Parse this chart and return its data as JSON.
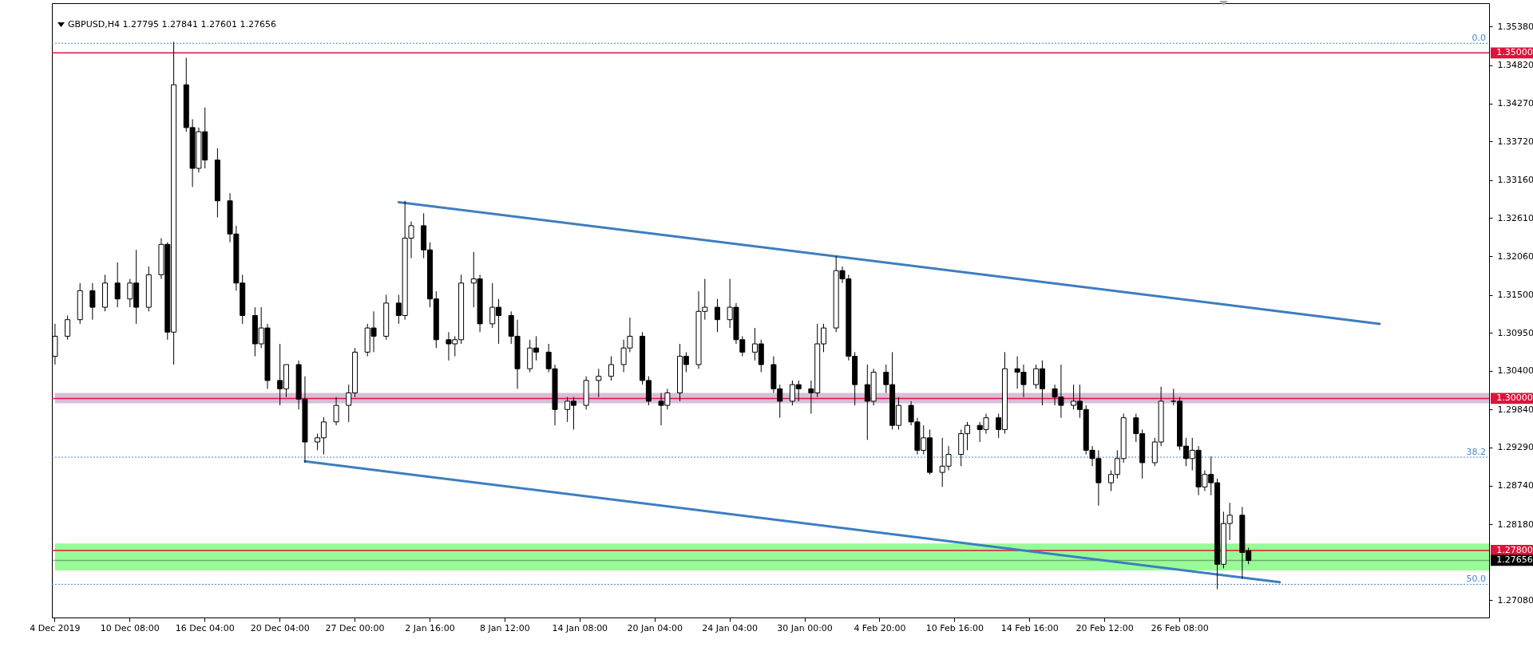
{
  "chart_data": {
    "type": "candlestick",
    "title": "GBPUSD,H4  1.27795 1.27841 1.27601 1.27656",
    "color": "#000000",
    "categories": [
      "4 Dec 2019",
      null,
      null,
      null,
      null,
      null,
      null,
      null,
      null,
      null,
      null,
      null,
      "10 Dec 08:00",
      null,
      null,
      null,
      null,
      null,
      null,
      null,
      null,
      null,
      null,
      null,
      "16 Dec 04:00",
      null,
      null,
      null,
      null,
      null,
      null,
      null,
      null,
      null,
      null,
      null,
      "20 Dec 04:00",
      null,
      null,
      null,
      null,
      null,
      null,
      null,
      null,
      null,
      null,
      null,
      "27 Dec 00:00",
      null,
      null,
      null,
      null,
      null,
      null,
      null,
      null,
      null,
      null,
      null,
      "2 Jan 16:00",
      null,
      null,
      null,
      null,
      null,
      null,
      null,
      null,
      null,
      null,
      null,
      "8 Jan 12:00",
      null,
      null,
      null,
      null,
      null,
      null,
      null,
      null,
      null,
      null,
      null,
      "14 Jan 08:00",
      null,
      null,
      null,
      null,
      null,
      null,
      null,
      null,
      null,
      null,
      null,
      "20 Jan 04:00",
      null,
      null,
      null,
      null,
      null,
      null,
      null,
      null,
      null,
      null,
      null,
      "24 Jan 04:00",
      null,
      null,
      null,
      null,
      null,
      null,
      null,
      null,
      null,
      null,
      null,
      "30 Jan 00:00",
      null,
      null,
      null,
      null,
      null,
      null,
      null,
      null,
      null,
      null,
      null,
      "4 Feb 20:00",
      null,
      null,
      null,
      null,
      null,
      null,
      null,
      null,
      null,
      null,
      null,
      "10 Feb 16:00",
      null,
      null,
      null,
      null,
      null,
      null,
      null,
      null,
      null,
      null,
      null,
      "14 Feb 16:00",
      null,
      null,
      null,
      null,
      null,
      null,
      null,
      null,
      null,
      null,
      null,
      "20 Feb 12:00",
      null,
      null,
      null,
      null,
      null,
      null,
      null,
      null,
      null,
      null,
      null,
      "26 Feb 08:00",
      null,
      null,
      null,
      null,
      null,
      null,
      null,
      null,
      null,
      null,
      null,
      null,
      null,
      null,
      null,
      null,
      null,
      null,
      null,
      null,
      null,
      null,
      null,
      null,
      null,
      null,
      null,
      null,
      null,
      null,
      null,
      null,
      null,
      null,
      null,
      null,
      null,
      null,
      null,
      null,
      null,
      null,
      null,
      null,
      null,
      null,
      null,
      null,
      null
    ],
    "ohlc": [
      [
        1.3061,
        1.3108,
        1.3049,
        1.309
      ],
      null,
      [
        1.309,
        1.312,
        1.3085,
        1.3114
      ],
      null,
      [
        1.3114,
        1.3167,
        1.3108,
        1.3156
      ],
      null,
      [
        1.3156,
        1.3167,
        1.3114,
        1.3132
      ],
      null,
      [
        1.3132,
        1.3179,
        1.3126,
        1.3167
      ],
      null,
      [
        1.3167,
        1.3197,
        1.3132,
        1.3144
      ],
      null,
      [
        1.3144,
        1.3173,
        1.3132,
        1.3167
      ],
      [
        1.3167,
        1.3215,
        1.3108,
        1.3132
      ],
      null,
      [
        1.3132,
        1.3191,
        1.3126,
        1.3179
      ],
      null,
      [
        1.3179,
        1.3232,
        1.3173,
        1.3223
      ],
      [
        1.3223,
        1.3226,
        1.3085,
        1.3096
      ],
      [
        1.3096,
        1.3516,
        1.3049,
        1.3454
      ],
      null,
      [
        1.3454,
        1.3493,
        1.3386,
        1.3392
      ],
      [
        1.3392,
        1.3404,
        1.3306,
        1.3333
      ],
      [
        1.3333,
        1.3392,
        1.3327,
        1.3386
      ],
      [
        1.3386,
        1.3421,
        1.3333,
        1.3345
      ],
      null,
      [
        1.3345,
        1.3362,
        1.3262,
        1.3286
      ],
      null,
      [
        1.3286,
        1.3297,
        1.3226,
        1.3238
      ],
      [
        1.3238,
        1.325,
        1.3156,
        1.3167
      ],
      [
        1.3167,
        1.3179,
        1.3108,
        1.312
      ],
      null,
      [
        1.312,
        1.3132,
        1.3061,
        1.3079
      ],
      [
        1.3079,
        1.3132,
        1.3073,
        1.3102
      ],
      [
        1.3102,
        1.3108,
        1.3014,
        1.3026
      ],
      null,
      [
        1.3026,
        1.3079,
        1.299,
        1.3014
      ],
      [
        1.3014,
        1.3049,
        1.3002,
        1.3049
      ],
      null,
      [
        1.3049,
        1.3055,
        1.2984,
        1.2999
      ],
      [
        1.2999,
        1.3032,
        1.2907,
        1.2937
      ],
      null,
      [
        1.2937,
        1.2949,
        1.2925,
        1.2943
      ],
      [
        1.2943,
        1.2973,
        1.2919,
        1.2966
      ],
      null,
      [
        1.2966,
        1.3002,
        1.2961,
        1.299
      ],
      null,
      [
        1.299,
        1.302,
        1.2966,
        1.3008
      ],
      [
        1.3008,
        1.3073,
        1.3002,
        1.3067
      ],
      null,
      [
        1.3067,
        1.3108,
        1.3061,
        1.3102
      ],
      [
        1.3102,
        1.3126,
        1.3067,
        1.309
      ],
      null,
      [
        1.309,
        1.315,
        1.3085,
        1.3138
      ],
      null,
      [
        1.3138,
        1.315,
        1.3108,
        1.312
      ],
      [
        1.312,
        1.3286,
        1.3114,
        1.3232
      ],
      [
        1.3232,
        1.3256,
        1.3203,
        1.325
      ],
      null,
      [
        1.325,
        1.3268,
        1.3203,
        1.3215
      ],
      [
        1.3215,
        1.3226,
        1.3132,
        1.3144
      ],
      [
        1.3144,
        1.3155,
        1.3073,
        1.3085
      ],
      null,
      [
        1.3085,
        1.3096,
        1.3055,
        1.3079
      ],
      [
        1.3079,
        1.309,
        1.3061,
        1.3085
      ],
      [
        1.3085,
        1.3179,
        1.3079,
        1.3167
      ],
      null,
      [
        1.3167,
        1.3212,
        1.3132,
        1.3173
      ],
      [
        1.3173,
        1.3179,
        1.3096,
        1.3108
      ],
      null,
      [
        1.3108,
        1.3167,
        1.3102,
        1.3132
      ],
      [
        1.3132,
        1.3144,
        1.3079,
        1.312
      ],
      null,
      [
        1.312,
        1.3126,
        1.3079,
        1.309
      ],
      [
        1.309,
        1.3114,
        1.3014,
        1.3043
      ],
      null,
      [
        1.3043,
        1.3085,
        1.3038,
        1.3073
      ],
      [
        1.3073,
        1.309,
        1.3055,
        1.3067
      ],
      null,
      [
        1.3067,
        1.3079,
        1.3038,
        1.3043
      ],
      [
        1.3043,
        1.3049,
        1.2961,
        1.2984
      ],
      null,
      [
        1.2984,
        1.3002,
        1.2966,
        1.2996
      ],
      [
        1.2996,
        1.3002,
        1.2955,
        1.299
      ],
      null,
      [
        1.299,
        1.3032,
        1.2984,
        1.3026
      ],
      null,
      [
        1.3026,
        1.3043,
        1.3002,
        1.3032
      ],
      null,
      [
        1.3032,
        1.3061,
        1.3026,
        1.3049
      ],
      null,
      [
        1.3049,
        1.3085,
        1.3038,
        1.3073
      ],
      [
        1.3073,
        1.3117,
        1.3067,
        1.309
      ],
      null,
      [
        1.309,
        1.3096,
        1.302,
        1.3026
      ],
      [
        1.3026,
        1.3032,
        1.299,
        1.2996
      ],
      null,
      [
        1.2996,
        1.3008,
        1.2961,
        1.299
      ],
      [
        1.299,
        1.3014,
        1.2984,
        1.3008
      ],
      null,
      [
        1.3008,
        1.3079,
        1.2996,
        1.3061
      ],
      [
        1.3061,
        1.3067,
        1.3038,
        1.3049
      ],
      null,
      [
        1.3049,
        1.3155,
        1.3043,
        1.3126
      ],
      [
        1.3126,
        1.3173,
        1.3114,
        1.3132
      ],
      null,
      [
        1.3132,
        1.3144,
        1.3096,
        1.3114
      ],
      null,
      [
        1.3114,
        1.3173,
        1.3102,
        1.3132
      ],
      [
        1.3132,
        1.3138,
        1.3079,
        1.3085
      ],
      [
        1.3085,
        1.309,
        1.3061,
        1.3067
      ],
      null,
      [
        1.3067,
        1.3102,
        1.3055,
        1.3079
      ],
      [
        1.3079,
        1.3085,
        1.3038,
        1.3049
      ],
      null,
      [
        1.3049,
        1.3061,
        1.3008,
        1.3014
      ],
      [
        1.3014,
        1.302,
        1.2972,
        1.2996
      ],
      null,
      [
        1.2996,
        1.3026,
        1.299,
        1.302
      ],
      [
        1.302,
        1.3026,
        1.2996,
        1.3014
      ],
      null,
      [
        1.3014,
        1.3026,
        1.2978,
        1.3008
      ],
      [
        1.3008,
        1.3108,
        1.3002,
        1.3079
      ],
      [
        1.3079,
        1.3108,
        1.3067,
        1.3102
      ],
      null,
      [
        1.3102,
        1.3206,
        1.3096,
        1.3185
      ],
      [
        1.3185,
        1.3191,
        1.3167,
        1.3173
      ],
      [
        1.3173,
        1.3179,
        1.3055,
        1.3061
      ],
      [
        1.3061,
        1.3067,
        1.299,
        1.302
      ],
      null,
      [
        1.302,
        1.3049,
        1.294,
        1.2996
      ],
      [
        1.2996,
        1.3043,
        1.299,
        1.3038
      ],
      null,
      [
        1.3038,
        1.3049,
        1.3008,
        1.302
      ],
      [
        1.302,
        1.3067,
        1.2955,
        1.2961
      ],
      [
        1.2961,
        1.3002,
        1.2955,
        1.299
      ],
      null,
      [
        1.299,
        1.2996,
        1.2961,
        1.2966
      ],
      [
        1.2966,
        1.2972,
        1.2919,
        1.2925
      ],
      [
        1.2925,
        1.2961,
        1.2919,
        1.2943
      ],
      [
        1.2943,
        1.2955,
        1.289,
        1.2893
      ],
      null,
      [
        1.2893,
        1.2943,
        1.2872,
        1.2902
      ],
      [
        1.2902,
        1.2931,
        1.2896,
        1.2919
      ],
      null,
      [
        1.2919,
        1.2955,
        1.2902,
        1.2949
      ],
      [
        1.2949,
        1.2966,
        1.2925,
        1.2961
      ],
      null,
      [
        1.2961,
        1.2966,
        1.2937,
        1.2955
      ],
      [
        1.2955,
        1.2978,
        1.2949,
        1.2972
      ],
      null,
      [
        1.2972,
        1.2978,
        1.2943,
        1.2955
      ],
      [
        1.2955,
        1.3067,
        1.2949,
        1.3043
      ],
      null,
      [
        1.3043,
        1.3061,
        1.3014,
        1.3038
      ],
      [
        1.3038,
        1.3049,
        1.3002,
        1.302
      ],
      null,
      [
        1.302,
        1.3049,
        1.3014,
        1.3043
      ],
      [
        1.3043,
        1.3055,
        1.299,
        1.3014
      ],
      null,
      [
        1.3014,
        1.302,
        1.299,
        1.3002
      ],
      [
        1.3002,
        1.3049,
        1.2972,
        1.299
      ],
      null,
      [
        1.299,
        1.302,
        1.2984,
        1.2996
      ],
      [
        1.2996,
        1.302,
        1.2972,
        1.2984
      ],
      [
        1.2984,
        1.299,
        1.2919,
        1.2925
      ],
      [
        1.2925,
        1.2931,
        1.2902,
        1.2913
      ],
      [
        1.2913,
        1.2925,
        1.2845,
        1.2878
      ],
      null,
      [
        1.2878,
        1.2896,
        1.2866,
        1.289
      ],
      [
        1.289,
        1.2925,
        1.2884,
        1.2913
      ],
      [
        1.2913,
        1.2978,
        1.2907,
        1.2972
      ],
      null,
      [
        1.2972,
        1.2978,
        1.2937,
        1.2949
      ],
      [
        1.2949,
        1.2955,
        1.2884,
        1.2907
      ],
      null,
      [
        1.2907,
        1.2943,
        1.2902,
        1.2937
      ],
      [
        1.2937,
        1.3017,
        1.2931,
        1.2996
      ],
      null,
      [
        1.2996,
        1.3014,
        1.299,
        1.2996
      ],
      [
        1.2996,
        1.3002,
        1.2925,
        1.2931
      ],
      [
        1.2931,
        1.2943,
        1.2902,
        1.2913
      ],
      [
        1.2913,
        1.2943,
        1.2896,
        1.2925
      ],
      [
        1.2925,
        1.2931,
        1.286,
        1.2872
      ],
      [
        1.2872,
        1.2896,
        1.2866,
        1.289
      ],
      [
        1.289,
        1.2916,
        1.286,
        1.2878
      ],
      [
        1.2878,
        1.2884,
        1.2724,
        1.276
      ],
      [
        1.276,
        1.2836,
        1.2754,
        1.2819
      ],
      [
        1.2819,
        1.2849,
        1.2795,
        1.2831
      ],
      null,
      [
        1.2831,
        1.2843,
        1.2739,
        1.2777
      ],
      [
        1.27795,
        1.27841,
        1.27601,
        1.27656
      ],
      null,
      null,
      null,
      null,
      null,
      null,
      null,
      null,
      null,
      null,
      null,
      null,
      null,
      null,
      null,
      null,
      null,
      null,
      null,
      null,
      null,
      null,
      null,
      null,
      null,
      null,
      null,
      null,
      null,
      null,
      null,
      null,
      null,
      null,
      null,
      null,
      null,
      null
    ],
    "series": [
      {
        "type": "line",
        "color": "#3d7ebf",
        "values": [
          null,
          null,
          null,
          null,
          null,
          null,
          null,
          null,
          null,
          null,
          null,
          null,
          null,
          null,
          null,
          null,
          null,
          null,
          null,
          null,
          null,
          null,
          null,
          null,
          null,
          null,
          null,
          null,
          null,
          null,
          null,
          null,
          null,
          null,
          null,
          null,
          null,
          null,
          null,
          null,
          null,
          null,
          null,
          null,
          null,
          null,
          null,
          null,
          null,
          null,
          null,
          null,
          null,
          null,
          null,
          1.3284,
          null,
          null,
          null,
          null,
          null,
          null,
          null,
          null,
          null,
          null,
          null,
          null,
          null,
          null,
          null,
          null,
          null,
          null,
          null,
          null,
          null,
          null,
          null,
          null,
          null,
          null,
          null,
          null,
          null,
          null,
          null,
          null,
          null,
          null,
          null,
          null,
          null,
          null,
          null,
          null,
          null,
          null,
          null,
          null,
          null,
          null,
          null,
          null,
          null,
          null,
          null,
          null,
          null,
          null,
          null,
          null,
          null,
          null,
          null,
          null,
          null,
          null,
          null,
          null,
          null,
          null,
          null,
          null,
          null,
          null,
          null,
          null,
          null,
          null,
          null,
          null,
          null,
          null,
          null,
          null,
          null,
          null,
          null,
          null,
          null,
          null,
          null,
          null,
          null,
          null,
          null,
          null,
          null,
          null,
          null,
          null,
          null,
          null,
          null,
          null,
          null,
          null,
          null,
          null,
          null,
          null,
          null,
          null,
          null,
          null,
          null,
          null,
          null,
          null,
          null,
          null,
          null,
          null,
          null,
          null,
          null,
          null,
          null,
          null,
          null,
          null,
          null,
          null,
          null,
          null,
          null,
          null,
          null,
          null,
          null,
          null,
          null,
          null,
          null,
          null,
          null,
          null,
          null,
          null,
          null,
          null,
          null,
          null,
          null,
          null,
          null,
          null,
          null,
          null,
          null,
          null,
          1.3108,
          null,
          null,
          null,
          null,
          null,
          null,
          null,
          null,
          null,
          null,
          null,
          null,
          null,
          null,
          null,
          null,
          null
        ]
      },
      {
        "type": "line",
        "color": "#3d7ebf",
        "values": [
          null,
          null,
          null,
          null,
          null,
          null,
          null,
          null,
          null,
          null,
          null,
          null,
          null,
          null,
          null,
          null,
          null,
          null,
          null,
          null,
          null,
          null,
          null,
          null,
          null,
          null,
          null,
          null,
          null,
          null,
          null,
          null,
          null,
          null,
          null,
          null,
          null,
          null,
          null,
          null,
          1.2909,
          null,
          null,
          null,
          null,
          null,
          null,
          null,
          null,
          null,
          null,
          null,
          null,
          null,
          null,
          null,
          null,
          null,
          null,
          null,
          null,
          null,
          null,
          null,
          null,
          null,
          null,
          null,
          null,
          null,
          null,
          null,
          null,
          null,
          null,
          null,
          null,
          null,
          null,
          null,
          null,
          null,
          null,
          null,
          null,
          null,
          null,
          null,
          null,
          null,
          null,
          null,
          null,
          null,
          null,
          null,
          null,
          null,
          null,
          null,
          null,
          null,
          null,
          null,
          null,
          null,
          null,
          null,
          null,
          null,
          null,
          null,
          null,
          null,
          null,
          null,
          null,
          null,
          null,
          null,
          null,
          null,
          null,
          null,
          null,
          null,
          null,
          null,
          null,
          null,
          null,
          null,
          null,
          null,
          null,
          null,
          null,
          null,
          null,
          null,
          null,
          null,
          null,
          null,
          null,
          null,
          null,
          null,
          null,
          null,
          null,
          null,
          null,
          null,
          null,
          null,
          null,
          null,
          null,
          null,
          null,
          null,
          null,
          null,
          null,
          null,
          null,
          null,
          null,
          null,
          null,
          null,
          null,
          null,
          null,
          null,
          null,
          null,
          null,
          null,
          null,
          null,
          null,
          null,
          null,
          null,
          null,
          null,
          null,
          null,
          null,
          null,
          null,
          null,
          null,
          null,
          1.2734,
          null,
          null,
          null,
          null,
          null,
          null,
          null,
          null,
          null,
          null,
          null,
          null,
          null,
          null,
          null,
          null,
          null,
          null,
          null,
          null,
          null,
          null,
          null,
          null,
          null,
          null,
          null,
          null,
          null,
          null,
          null,
          null,
          null
        ]
      }
    ],
    "ylim": [
      1.2683,
      1.3572
    ],
    "yticks": [
      {
        "value": 1.3538,
        "label": "1.35380"
      },
      {
        "value": 1.3482,
        "label": "1.34820"
      },
      {
        "value": 1.3427,
        "label": "1.34270"
      },
      {
        "value": 1.3372,
        "label": "1.33720"
      },
      {
        "value": 1.3316,
        "label": "1.33160"
      },
      {
        "value": 1.3261,
        "label": "1.32610"
      },
      {
        "value": 1.3206,
        "label": "1.32060"
      },
      {
        "value": 1.315,
        "label": "1.31500"
      },
      {
        "value": 1.3095,
        "label": "1.30950"
      },
      {
        "value": 1.304,
        "label": "1.30400"
      },
      {
        "value": 1.2984,
        "label": "1.29840"
      },
      {
        "value": 1.2929,
        "label": "1.29290"
      },
      {
        "value": 1.2874,
        "label": "1.28740"
      },
      {
        "value": 1.2818,
        "label": "1.28180"
      },
      {
        "value": 1.2708,
        "label": "1.27080"
      }
    ],
    "bands": [
      {
        "axis": "y",
        "from": 1.2993,
        "to": 1.3008,
        "color": "#d8bfd8"
      },
      {
        "axis": "y",
        "from": 1.2751,
        "to": 1.279,
        "color": "#98fb98"
      }
    ],
    "ref_lines": [
      {
        "axis": "y",
        "value": 1.3514,
        "color": "#4a86c8",
        "line_style": "dotted"
      },
      {
        "axis": "y",
        "value": 1.2915,
        "color": "#4a86c8",
        "line_style": "dotted"
      },
      {
        "axis": "y",
        "value": 1.2731,
        "color": "#4a86c8",
        "line_style": "dotted"
      },
      {
        "axis": "y",
        "value": 1.35,
        "label": "1.35000",
        "color": "#dc143c",
        "line_style": "solid"
      },
      {
        "axis": "y",
        "value": 1.3,
        "label": "1.30000",
        "color": "#dc143c",
        "line_style": "solid"
      },
      {
        "axis": "y",
        "value": 1.278,
        "label": "1.27800",
        "color": "#dc143c",
        "line_style": "solid"
      },
      {
        "axis": "y",
        "value": 1.27656,
        "label": "1.27656",
        "color": "#000000",
        "line_style": "solid"
      }
    ],
    "annotations": [
      {
        "text": "0.0",
        "y": 1.3514
      },
      {
        "text": "38.2",
        "y": 1.2915
      },
      {
        "text": "50.0",
        "y": 1.2731
      }
    ]
  }
}
